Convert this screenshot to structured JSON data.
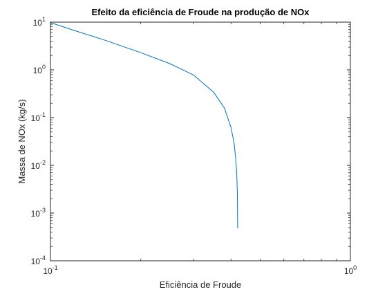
{
  "chart_data": {
    "type": "line",
    "title": "Efeito da eficiência de Froude na produção de NOx",
    "xlabel": "Eficiência de Froude",
    "ylabel": "Massa de NOx (kg/s)",
    "xscale": "log",
    "yscale": "log",
    "xlim": [
      0.1,
      1
    ],
    "ylim": [
      0.0001,
      10
    ],
    "grid": false,
    "x_ticks": [
      {
        "value": 0.1,
        "base": "10",
        "exp": "-1"
      },
      {
        "value": 1,
        "base": "10",
        "exp": "0"
      }
    ],
    "y_ticks": [
      {
        "value": 0.0001,
        "base": "10",
        "exp": "-4"
      },
      {
        "value": 0.001,
        "base": "10",
        "exp": "-3"
      },
      {
        "value": 0.01,
        "base": "10",
        "exp": "-2"
      },
      {
        "value": 0.1,
        "base": "10",
        "exp": "-1"
      },
      {
        "value": 1,
        "base": "10",
        "exp": "0"
      },
      {
        "value": 10,
        "base": "10",
        "exp": "1"
      }
    ],
    "line_color": "#0072BD",
    "axis_color": "#262626",
    "series": [
      {
        "x": [
          0.1,
          0.12,
          0.15,
          0.2,
          0.25,
          0.3,
          0.35,
          0.38,
          0.4,
          0.41,
          0.415,
          0.418,
          0.42,
          0.421
        ],
        "values": [
          9.8,
          6.7,
          4.3,
          2.3,
          1.35,
          0.78,
          0.34,
          0.16,
          0.062,
          0.028,
          0.013,
          0.0065,
          0.0026,
          0.00048
        ]
      }
    ]
  }
}
